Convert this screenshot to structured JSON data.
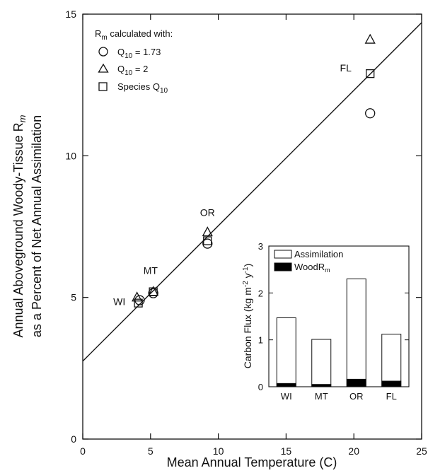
{
  "chart_data": [
    {
      "type": "scatter",
      "xlabel": "Mean Annual Temperature (C)",
      "ylabel_line1": "Annual Aboveground Woody-Tissue R",
      "ylabel_line1_sub": "m",
      "ylabel_line2": "as a Percent of Net Annual Assimilation",
      "xlim": [
        0,
        25
      ],
      "ylim": [
        0,
        15
      ],
      "xticks": [
        0,
        5,
        10,
        15,
        20,
        25
      ],
      "yticks": [
        0,
        5,
        10,
        15
      ],
      "legend": {
        "title": "R",
        "title_sub": "m",
        "title_rest": " calculated with:",
        "entries": [
          {
            "marker": "circle",
            "text": "Q",
            "sub": "10",
            "rest": " = 1.73"
          },
          {
            "marker": "triangle",
            "text": "Q",
            "sub": "10",
            "rest": " = 2"
          },
          {
            "marker": "square",
            "text": "Species Q",
            "sub": "10",
            "rest": ""
          }
        ]
      },
      "series": [
        {
          "marker": "circle",
          "x": [
            4.2,
            5.2,
            9.2,
            21.2
          ],
          "y": [
            4.9,
            5.15,
            6.9,
            11.5
          ]
        },
        {
          "marker": "triangle",
          "x": [
            4.0,
            5.2,
            9.2,
            21.2
          ],
          "y": [
            5.0,
            5.2,
            7.3,
            14.1
          ]
        },
        {
          "marker": "square",
          "x": [
            4.1,
            5.2,
            9.2,
            21.2
          ],
          "y": [
            4.8,
            5.2,
            7.0,
            12.9
          ]
        }
      ],
      "regression_line": {
        "x": [
          0,
          25
        ],
        "y": [
          2.75,
          14.7
        ]
      },
      "point_labels": [
        {
          "text": "WI",
          "x": 2.7,
          "y": 4.85
        },
        {
          "text": "MT",
          "x": 5.0,
          "y": 5.95
        },
        {
          "text": "OR",
          "x": 9.2,
          "y": 8.0
        },
        {
          "text": "FL",
          "x": 19.4,
          "y": 13.1
        }
      ]
    },
    {
      "type": "bar",
      "ylabel": "Carbon Flux (kg m",
      "ylabel_sup": "-2",
      "ylabel_mid": " y",
      "ylabel_sup2": "-1",
      "ylabel_end": ")",
      "categories": [
        "WI",
        "MT",
        "OR",
        "FL"
      ],
      "ylim": [
        0,
        3
      ],
      "yticks": [
        0,
        1,
        2,
        3
      ],
      "series": [
        {
          "name": "Assimilation",
          "values": [
            1.47,
            1.01,
            2.3,
            1.12
          ],
          "color": "#ffffff"
        },
        {
          "name": "Wood",
          "name_rest": "R",
          "name_sub": "m",
          "values": [
            0.07,
            0.05,
            0.16,
            0.12
          ],
          "color": "#000000"
        }
      ]
    }
  ]
}
